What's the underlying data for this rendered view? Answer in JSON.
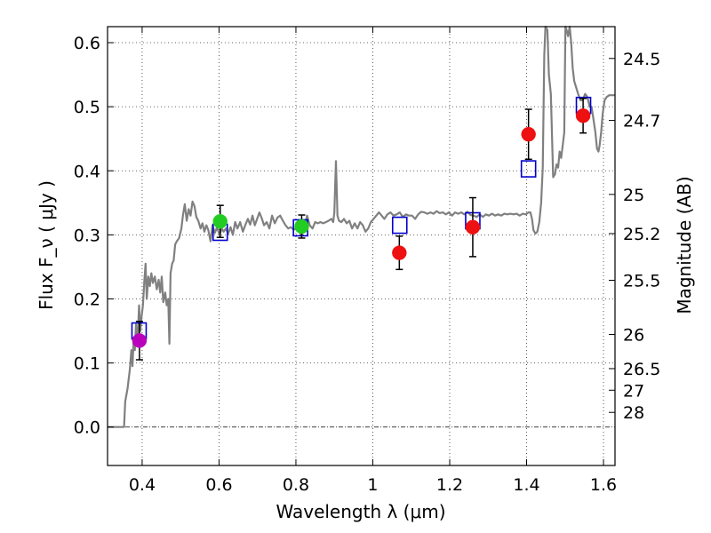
{
  "chart_data": {
    "type": "scatter",
    "xlabel": "Wavelength  λ (μm)",
    "ylabel": "Flux  F_ν  ( μJy )",
    "ylabel_right": "Magnitude (AB)",
    "xlim": [
      0.31,
      1.63
    ],
    "ylim": [
      -0.06,
      0.625
    ],
    "x_ticks": [
      {
        "value": 0.4,
        "label": "0.4"
      },
      {
        "value": 0.6,
        "label": "0.6"
      },
      {
        "value": 0.8,
        "label": "0.8"
      },
      {
        "value": 1.0,
        "label": "1"
      },
      {
        "value": 1.2,
        "label": "1.2"
      },
      {
        "value": 1.4,
        "label": "1.4"
      },
      {
        "value": 1.6,
        "label": "1.6"
      }
    ],
    "y_ticks": [
      {
        "value": 0.0,
        "label": "0.0"
      },
      {
        "value": 0.1,
        "label": "0.1"
      },
      {
        "value": 0.2,
        "label": "0.2"
      },
      {
        "value": 0.3,
        "label": "0.3"
      },
      {
        "value": 0.4,
        "label": "0.4"
      },
      {
        "value": 0.5,
        "label": "0.5"
      },
      {
        "value": 0.6,
        "label": "0.6"
      }
    ],
    "right_ticks": [
      {
        "label": "24.5",
        "flux": 0.5754
      },
      {
        "label": "24.7",
        "flux": 0.4786
      },
      {
        "label": "25",
        "flux": 0.3631
      },
      {
        "label": "25.2",
        "flux": 0.302
      },
      {
        "label": "25.5",
        "flux": 0.2291
      },
      {
        "label": "26",
        "flux": 0.1445
      },
      {
        "label": "26.5",
        "flux": 0.0912
      },
      {
        "label": "27",
        "flux": 0.0575
      },
      {
        "label": "28",
        "flux": 0.0229
      }
    ],
    "grid": true,
    "series": [
      {
        "kind": "model_spectrum",
        "color": "#808080",
        "points": [
          [
            0.31,
            0.0
          ],
          [
            0.353,
            0.0
          ],
          [
            0.356,
            0.04
          ],
          [
            0.362,
            0.06
          ],
          [
            0.368,
            0.09
          ],
          [
            0.372,
            0.12
          ],
          [
            0.375,
            0.095
          ],
          [
            0.378,
            0.14
          ],
          [
            0.381,
            0.12
          ],
          [
            0.384,
            0.16
          ],
          [
            0.388,
            0.13
          ],
          [
            0.392,
            0.19
          ],
          [
            0.395,
            0.15
          ],
          [
            0.398,
            0.17
          ],
          [
            0.402,
            0.19
          ],
          [
            0.406,
            0.23
          ],
          [
            0.409,
            0.255
          ],
          [
            0.412,
            0.2
          ],
          [
            0.416,
            0.235
          ],
          [
            0.42,
            0.22
          ],
          [
            0.424,
            0.24
          ],
          [
            0.428,
            0.225
          ],
          [
            0.433,
            0.235
          ],
          [
            0.438,
            0.215
          ],
          [
            0.443,
            0.23
          ],
          [
            0.447,
            0.21
          ],
          [
            0.451,
            0.235
          ],
          [
            0.455,
            0.195
          ],
          [
            0.46,
            0.21
          ],
          [
            0.464,
            0.19
          ],
          [
            0.468,
            0.2
          ],
          [
            0.471,
            0.13
          ],
          [
            0.474,
            0.24
          ],
          [
            0.478,
            0.255
          ],
          [
            0.482,
            0.26
          ],
          [
            0.486,
            0.285
          ],
          [
            0.49,
            0.29
          ],
          [
            0.496,
            0.295
          ],
          [
            0.502,
            0.31
          ],
          [
            0.506,
            0.33
          ],
          [
            0.511,
            0.348
          ],
          [
            0.516,
            0.322
          ],
          [
            0.521,
            0.34
          ],
          [
            0.526,
            0.33
          ],
          [
            0.531,
            0.352
          ],
          [
            0.536,
            0.345
          ],
          [
            0.541,
            0.328
          ],
          [
            0.546,
            0.322
          ],
          [
            0.552,
            0.31
          ],
          [
            0.557,
            0.318
          ],
          [
            0.562,
            0.305
          ],
          [
            0.567,
            0.315
          ],
          [
            0.572,
            0.308
          ],
          [
            0.578,
            0.29
          ],
          [
            0.583,
            0.315
          ],
          [
            0.589,
            0.303
          ],
          [
            0.595,
            0.312
          ],
          [
            0.601,
            0.3
          ],
          [
            0.607,
            0.31
          ],
          [
            0.612,
            0.305
          ],
          [
            0.618,
            0.31
          ],
          [
            0.624,
            0.302
          ],
          [
            0.63,
            0.312
          ],
          [
            0.636,
            0.3
          ],
          [
            0.642,
            0.32
          ],
          [
            0.648,
            0.31
          ],
          [
            0.655,
            0.32
          ],
          [
            0.662,
            0.305
          ],
          [
            0.668,
            0.315
          ],
          [
            0.675,
            0.325
          ],
          [
            0.681,
            0.316
          ],
          [
            0.687,
            0.33
          ],
          [
            0.693,
            0.315
          ],
          [
            0.699,
            0.325
          ],
          [
            0.705,
            0.335
          ],
          [
            0.711,
            0.326
          ],
          [
            0.717,
            0.315
          ],
          [
            0.724,
            0.32
          ],
          [
            0.731,
            0.31
          ],
          [
            0.738,
            0.33
          ],
          [
            0.745,
            0.318
          ],
          [
            0.752,
            0.327
          ],
          [
            0.759,
            0.33
          ],
          [
            0.766,
            0.322
          ],
          [
            0.773,
            0.315
          ],
          [
            0.78,
            0.31
          ],
          [
            0.787,
            0.312
          ],
          [
            0.794,
            0.308
          ],
          [
            0.801,
            0.31
          ],
          [
            0.808,
            0.305
          ],
          [
            0.815,
            0.3
          ],
          [
            0.822,
            0.31
          ],
          [
            0.829,
            0.33
          ],
          [
            0.836,
            0.315
          ],
          [
            0.843,
            0.31
          ],
          [
            0.85,
            0.32
          ],
          [
            0.857,
            0.318
          ],
          [
            0.864,
            0.32
          ],
          [
            0.871,
            0.318
          ],
          [
            0.878,
            0.32
          ],
          [
            0.885,
            0.322
          ],
          [
            0.892,
            0.325
          ],
          [
            0.897,
            0.32
          ],
          [
            0.9,
            0.335
          ],
          [
            0.904,
            0.415
          ],
          [
            0.908,
            0.33
          ],
          [
            0.912,
            0.322
          ],
          [
            0.918,
            0.32
          ],
          [
            0.925,
            0.325
          ],
          [
            0.932,
            0.318
          ],
          [
            0.939,
            0.322
          ],
          [
            0.946,
            0.31
          ],
          [
            0.953,
            0.318
          ],
          [
            0.96,
            0.31
          ],
          [
            0.967,
            0.32
          ],
          [
            0.974,
            0.315
          ],
          [
            0.981,
            0.305
          ],
          [
            0.988,
            0.31
          ],
          [
            0.995,
            0.32
          ],
          [
            1.002,
            0.325
          ],
          [
            1.009,
            0.33
          ],
          [
            1.016,
            0.335
          ],
          [
            1.023,
            0.33
          ],
          [
            1.03,
            0.325
          ],
          [
            1.038,
            0.332
          ],
          [
            1.046,
            0.335
          ],
          [
            1.054,
            0.33
          ],
          [
            1.062,
            0.332
          ],
          [
            1.07,
            0.335
          ],
          [
            1.078,
            0.328
          ],
          [
            1.086,
            0.332
          ],
          [
            1.094,
            0.33
          ],
          [
            1.102,
            0.33
          ],
          [
            1.11,
            0.325
          ],
          [
            1.118,
            0.332
          ],
          [
            1.126,
            0.336
          ],
          [
            1.134,
            0.335
          ],
          [
            1.142,
            0.333
          ],
          [
            1.15,
            0.335
          ],
          [
            1.158,
            0.333
          ],
          [
            1.166,
            0.337
          ],
          [
            1.174,
            0.334
          ],
          [
            1.182,
            0.335
          ],
          [
            1.19,
            0.332
          ],
          [
            1.198,
            0.335
          ],
          [
            1.206,
            0.33
          ],
          [
            1.214,
            0.335
          ],
          [
            1.222,
            0.333
          ],
          [
            1.23,
            0.335
          ],
          [
            1.238,
            0.332
          ],
          [
            1.246,
            0.336
          ],
          [
            1.254,
            0.331
          ],
          [
            1.262,
            0.33
          ],
          [
            1.27,
            0.328
          ],
          [
            1.278,
            0.332
          ],
          [
            1.286,
            0.328
          ],
          [
            1.294,
            0.332
          ],
          [
            1.302,
            0.33
          ],
          [
            1.31,
            0.333
          ],
          [
            1.318,
            0.33
          ],
          [
            1.326,
            0.332
          ],
          [
            1.334,
            0.33
          ],
          [
            1.342,
            0.333
          ],
          [
            1.35,
            0.332
          ],
          [
            1.358,
            0.333
          ],
          [
            1.366,
            0.332
          ],
          [
            1.374,
            0.333
          ],
          [
            1.382,
            0.33
          ],
          [
            1.39,
            0.333
          ],
          [
            1.398,
            0.332
          ],
          [
            1.405,
            0.335
          ],
          [
            1.41,
            0.335
          ],
          [
            1.414,
            0.325
          ],
          [
            1.418,
            0.307
          ],
          [
            1.423,
            0.302
          ],
          [
            1.428,
            0.305
          ],
          [
            1.433,
            0.32
          ],
          [
            1.438,
            0.35
          ],
          [
            1.442,
            0.405
          ],
          [
            1.446,
            0.58
          ],
          [
            1.449,
            0.63
          ],
          [
            1.454,
            0.62
          ],
          [
            1.458,
            0.55
          ],
          [
            1.463,
            0.52
          ],
          [
            1.469,
            0.39
          ],
          [
            1.474,
            0.395
          ],
          [
            1.478,
            0.41
          ],
          [
            1.482,
            0.405
          ],
          [
            1.486,
            0.43
          ],
          [
            1.49,
            0.42
          ],
          [
            1.494,
            0.44
          ],
          [
            1.498,
            0.46
          ],
          [
            1.501,
            0.63
          ],
          [
            1.504,
            0.62
          ],
          [
            1.508,
            0.61
          ],
          [
            1.512,
            0.63
          ],
          [
            1.516,
            0.6
          ],
          [
            1.52,
            0.56
          ],
          [
            1.524,
            0.54
          ],
          [
            1.529,
            0.53
          ],
          [
            1.534,
            0.52
          ],
          [
            1.54,
            0.51
          ],
          [
            1.546,
            0.51
          ],
          [
            1.552,
            0.52
          ],
          [
            1.558,
            0.515
          ],
          [
            1.564,
            0.5
          ],
          [
            1.569,
            0.5
          ],
          [
            1.574,
            0.48
          ],
          [
            1.579,
            0.46
          ],
          [
            1.583,
            0.435
          ],
          [
            1.587,
            0.43
          ],
          [
            1.59,
            0.44
          ],
          [
            1.594,
            0.46
          ],
          [
            1.598,
            0.49
          ],
          [
            1.603,
            0.51
          ],
          [
            1.608,
            0.515
          ],
          [
            1.615,
            0.518
          ],
          [
            1.63,
            0.518
          ]
        ]
      },
      {
        "kind": "model_squares",
        "color": "#0000cc",
        "x": [
          0.392,
          0.603,
          0.812,
          1.07,
          1.26,
          1.405,
          1.548
        ],
        "y": [
          0.15,
          0.304,
          0.311,
          0.315,
          0.322,
          0.403,
          0.502
        ]
      },
      {
        "kind": "observed_points",
        "points": [
          {
            "x": 0.393,
            "y": 0.135,
            "yerr": 0.03,
            "color": "#bb00bb"
          },
          {
            "x": 0.603,
            "y": 0.321,
            "yerr": 0.025,
            "color": "#22cc22"
          },
          {
            "x": 0.815,
            "y": 0.313,
            "yerr": 0.018,
            "color": "#22cc22"
          },
          {
            "x": 1.069,
            "y": 0.272,
            "yerr": 0.026,
            "color": "#ee1111"
          },
          {
            "x": 1.26,
            "y": 0.312,
            "yerr": 0.046,
            "color": "#ee1111"
          },
          {
            "x": 1.405,
            "y": 0.457,
            "yerr": 0.039,
            "color": "#ee1111"
          },
          {
            "x": 1.547,
            "y": 0.486,
            "yerr": 0.027,
            "color": "#ee1111"
          }
        ]
      }
    ]
  }
}
